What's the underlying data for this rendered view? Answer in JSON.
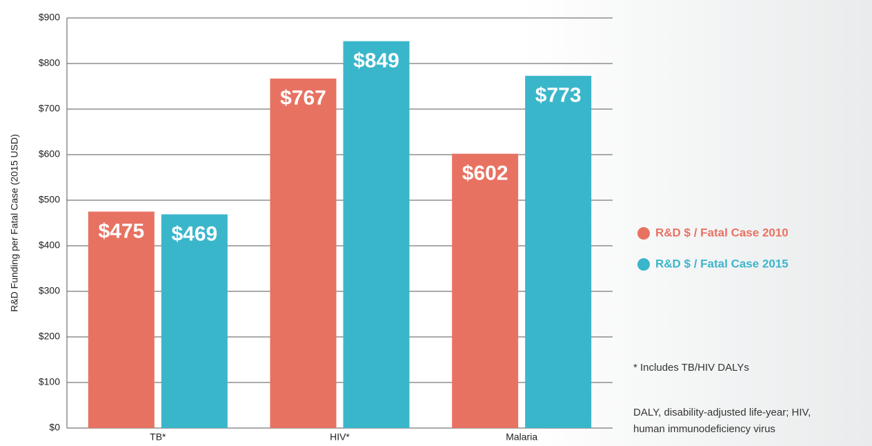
{
  "chart_data": {
    "type": "bar",
    "y_label": "R&D Funding per Fatal Case (2015 USD)",
    "categories": [
      "TB*",
      "HIV*",
      "Malaria"
    ],
    "series": [
      {
        "name": "R&D $ / Fatal Case 2010",
        "color": "#e87262",
        "values": [
          475,
          767,
          602
        ],
        "value_labels": [
          "$475",
          "$767",
          "$602"
        ]
      },
      {
        "name": "R&D $ / Fatal Case 2015",
        "color": "#3ab6cb",
        "values": [
          469,
          849,
          773
        ],
        "value_labels": [
          "$469",
          "$849",
          "$773"
        ]
      }
    ],
    "ylim": [
      0,
      900
    ],
    "yticks": [
      {
        "value": 0,
        "label": "$0"
      },
      {
        "value": 100,
        "label": "$100"
      },
      {
        "value": 200,
        "label": "$200"
      },
      {
        "value": 300,
        "label": "$300"
      },
      {
        "value": 400,
        "label": "$400"
      },
      {
        "value": 500,
        "label": "$500"
      },
      {
        "value": 600,
        "label": "$600"
      },
      {
        "value": 700,
        "label": "$700"
      },
      {
        "value": 800,
        "label": "$800"
      },
      {
        "value": 900,
        "label": "$900"
      }
    ],
    "grid": true,
    "legend": "right",
    "annotations": [
      "* Includes TB/HIV DALYs",
      "DALY, disability-adjusted life-year; HIV,",
      "human immunodeficiency virus"
    ]
  }
}
